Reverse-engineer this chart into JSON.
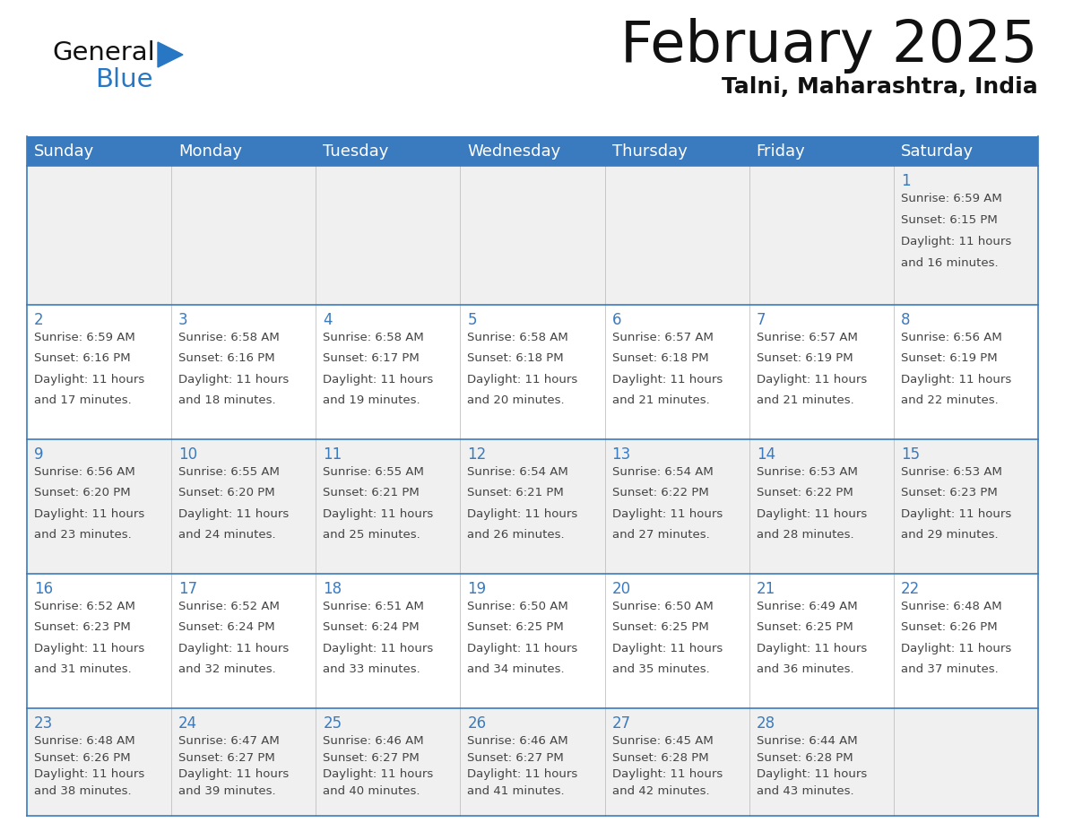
{
  "title": "February 2025",
  "subtitle": "Talni, Maharashtra, India",
  "header_color": "#3a7bbf",
  "header_text_color": "#ffffff",
  "day_names": [
    "Sunday",
    "Monday",
    "Tuesday",
    "Wednesday",
    "Thursday",
    "Friday",
    "Saturday"
  ],
  "bg_color": "#ffffff",
  "cell_bg_row0": "#f0f0f0",
  "cell_bg_row1": "#ffffff",
  "cell_bg_row2": "#f0f0f0",
  "cell_bg_row3": "#ffffff",
  "cell_bg_row4": "#f0f0f0",
  "cell_border_color": "#3a7bbf",
  "cell_divider_color": "#c0c0c0",
  "day_num_color": "#3a7bbf",
  "info_text_color": "#444444",
  "logo_general_color": "#111111",
  "logo_blue_color": "#2777c4",
  "calendar": [
    [
      null,
      null,
      null,
      null,
      null,
      null,
      {
        "day": "1",
        "sunrise": "6:59 AM",
        "sunset": "6:15 PM",
        "daylight": "11 hours",
        "daylight2": "and 16 minutes."
      }
    ],
    [
      {
        "day": "2",
        "sunrise": "6:59 AM",
        "sunset": "6:16 PM",
        "daylight": "11 hours",
        "daylight2": "and 17 minutes."
      },
      {
        "day": "3",
        "sunrise": "6:58 AM",
        "sunset": "6:16 PM",
        "daylight": "11 hours",
        "daylight2": "and 18 minutes."
      },
      {
        "day": "4",
        "sunrise": "6:58 AM",
        "sunset": "6:17 PM",
        "daylight": "11 hours",
        "daylight2": "and 19 minutes."
      },
      {
        "day": "5",
        "sunrise": "6:58 AM",
        "sunset": "6:18 PM",
        "daylight": "11 hours",
        "daylight2": "and 20 minutes."
      },
      {
        "day": "6",
        "sunrise": "6:57 AM",
        "sunset": "6:18 PM",
        "daylight": "11 hours",
        "daylight2": "and 21 minutes."
      },
      {
        "day": "7",
        "sunrise": "6:57 AM",
        "sunset": "6:19 PM",
        "daylight": "11 hours",
        "daylight2": "and 21 minutes."
      },
      {
        "day": "8",
        "sunrise": "6:56 AM",
        "sunset": "6:19 PM",
        "daylight": "11 hours",
        "daylight2": "and 22 minutes."
      }
    ],
    [
      {
        "day": "9",
        "sunrise": "6:56 AM",
        "sunset": "6:20 PM",
        "daylight": "11 hours",
        "daylight2": "and 23 minutes."
      },
      {
        "day": "10",
        "sunrise": "6:55 AM",
        "sunset": "6:20 PM",
        "daylight": "11 hours",
        "daylight2": "and 24 minutes."
      },
      {
        "day": "11",
        "sunrise": "6:55 AM",
        "sunset": "6:21 PM",
        "daylight": "11 hours",
        "daylight2": "and 25 minutes."
      },
      {
        "day": "12",
        "sunrise": "6:54 AM",
        "sunset": "6:21 PM",
        "daylight": "11 hours",
        "daylight2": "and 26 minutes."
      },
      {
        "day": "13",
        "sunrise": "6:54 AM",
        "sunset": "6:22 PM",
        "daylight": "11 hours",
        "daylight2": "and 27 minutes."
      },
      {
        "day": "14",
        "sunrise": "6:53 AM",
        "sunset": "6:22 PM",
        "daylight": "11 hours",
        "daylight2": "and 28 minutes."
      },
      {
        "day": "15",
        "sunrise": "6:53 AM",
        "sunset": "6:23 PM",
        "daylight": "11 hours",
        "daylight2": "and 29 minutes."
      }
    ],
    [
      {
        "day": "16",
        "sunrise": "6:52 AM",
        "sunset": "6:23 PM",
        "daylight": "11 hours",
        "daylight2": "and 31 minutes."
      },
      {
        "day": "17",
        "sunrise": "6:52 AM",
        "sunset": "6:24 PM",
        "daylight": "11 hours",
        "daylight2": "and 32 minutes."
      },
      {
        "day": "18",
        "sunrise": "6:51 AM",
        "sunset": "6:24 PM",
        "daylight": "11 hours",
        "daylight2": "and 33 minutes."
      },
      {
        "day": "19",
        "sunrise": "6:50 AM",
        "sunset": "6:25 PM",
        "daylight": "11 hours",
        "daylight2": "and 34 minutes."
      },
      {
        "day": "20",
        "sunrise": "6:50 AM",
        "sunset": "6:25 PM",
        "daylight": "11 hours",
        "daylight2": "and 35 minutes."
      },
      {
        "day": "21",
        "sunrise": "6:49 AM",
        "sunset": "6:25 PM",
        "daylight": "11 hours",
        "daylight2": "and 36 minutes."
      },
      {
        "day": "22",
        "sunrise": "6:48 AM",
        "sunset": "6:26 PM",
        "daylight": "11 hours",
        "daylight2": "and 37 minutes."
      }
    ],
    [
      {
        "day": "23",
        "sunrise": "6:48 AM",
        "sunset": "6:26 PM",
        "daylight": "11 hours",
        "daylight2": "and 38 minutes."
      },
      {
        "day": "24",
        "sunrise": "6:47 AM",
        "sunset": "6:27 PM",
        "daylight": "11 hours",
        "daylight2": "and 39 minutes."
      },
      {
        "day": "25",
        "sunrise": "6:46 AM",
        "sunset": "6:27 PM",
        "daylight": "11 hours",
        "daylight2": "and 40 minutes."
      },
      {
        "day": "26",
        "sunrise": "6:46 AM",
        "sunset": "6:27 PM",
        "daylight": "11 hours",
        "daylight2": "and 41 minutes."
      },
      {
        "day": "27",
        "sunrise": "6:45 AM",
        "sunset": "6:28 PM",
        "daylight": "11 hours",
        "daylight2": "and 42 minutes."
      },
      {
        "day": "28",
        "sunrise": "6:44 AM",
        "sunset": "6:28 PM",
        "daylight": "11 hours",
        "daylight2": "and 43 minutes."
      },
      null
    ]
  ]
}
